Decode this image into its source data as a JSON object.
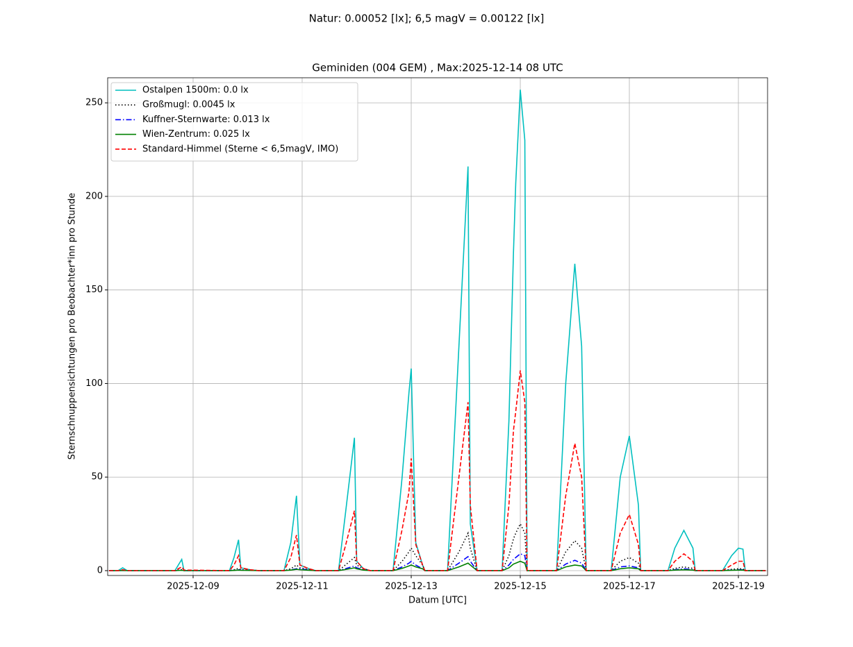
{
  "chart_data": {
    "type": "line",
    "suptitle": "Natur: 0.00052 [lx]; 6,5 magV = 0.00122 [lx]",
    "title": "Geminiden (004 GEM) , Max:2025-12-14 08 UTC",
    "x_label": "Datum [UTC]",
    "y_label": "Sternschnuppensichtungen pro Beobachter*inn pro Stunde",
    "grid": true,
    "legend": "upper left",
    "xlim": [
      "2025-12-07T10:24",
      "2025-12-19T12:50"
    ],
    "xticks": [
      "2025-12-09",
      "2025-12-11",
      "2025-12-13",
      "2025-12-15",
      "2025-12-17",
      "2025-12-19"
    ],
    "ylim": [
      -2.6,
      263.4
    ],
    "yticks": [
      0,
      50,
      100,
      150,
      200,
      250
    ],
    "x": [
      "2025-12-07T11:00",
      "2025-12-07T15:00",
      "2025-12-07T17:00",
      "2025-12-07T19:00",
      "2025-12-08T16:00",
      "2025-12-08T19:00",
      "2025-12-08T20:00",
      "2025-12-09T16:00",
      "2025-12-09T18:00",
      "2025-12-09T20:00",
      "2025-12-09T21:00",
      "2025-12-10T01:00",
      "2025-12-10T05:00",
      "2025-12-10T16:00",
      "2025-12-10T19:00",
      "2025-12-10T21:30",
      "2025-12-10T23:00",
      "2025-12-11T03:00",
      "2025-12-11T06:00",
      "2025-12-11T16:00",
      "2025-12-11T19:00",
      "2025-12-11T23:00",
      "2025-12-12T00:00",
      "2025-12-12T03:00",
      "2025-12-12T06:00",
      "2025-12-12T16:00",
      "2025-12-12T20:00",
      "2025-12-12T23:00",
      "2025-12-13T00:00",
      "2025-12-13T02:00",
      "2025-12-13T05:00",
      "2025-12-13T06:00",
      "2025-12-13T16:00",
      "2025-12-13T21:00",
      "2025-12-14T01:00",
      "2025-12-14T02:00",
      "2025-12-14T05:00",
      "2025-12-14T16:00",
      "2025-12-14T19:00",
      "2025-12-14T21:00",
      "2025-12-14T22:00",
      "2025-12-15T00:00",
      "2025-12-15T02:00",
      "2025-12-15T03:00",
      "2025-12-15T16:00",
      "2025-12-15T20:00",
      "2025-12-16T00:00",
      "2025-12-16T03:00",
      "2025-12-16T05:00",
      "2025-12-16T16:00",
      "2025-12-16T20:00",
      "2025-12-17T00:00",
      "2025-12-17T04:00",
      "2025-12-17T05:00",
      "2025-12-17T17:00",
      "2025-12-17T20:00",
      "2025-12-18T00:00",
      "2025-12-18T04:00",
      "2025-12-18T05:00",
      "2025-12-18T17:00",
      "2025-12-18T21:00",
      "2025-12-19T00:00",
      "2025-12-19T02:00",
      "2025-12-19T03:00",
      "2025-12-19T12:00"
    ],
    "series": [
      {
        "name": "Ostalpen 1500m: 0.0 lx",
        "color": "#00bfbf",
        "linestyle": "solid",
        "values": [
          0,
          0,
          1.5,
          0,
          0,
          6,
          0,
          0,
          7,
          16.5,
          1.5,
          0.5,
          0,
          0,
          15,
          40,
          3,
          1,
          0,
          0,
          30,
          71,
          5,
          1,
          0,
          0,
          50,
          95,
          108,
          15,
          3,
          0,
          0,
          120,
          216,
          25,
          0,
          0,
          80,
          170,
          207,
          257,
          230,
          0,
          0,
          100,
          164,
          120,
          0,
          0,
          50,
          72,
          35,
          0,
          0,
          12,
          21.5,
          12,
          0,
          0,
          8,
          12,
          11.5,
          0,
          0
        ]
      },
      {
        "name": "Großmugl: 0.0045 lx",
        "color": "#000000",
        "linestyle": "dotted",
        "values": [
          0,
          0,
          0.2,
          0,
          0,
          0.5,
          0,
          0,
          0.5,
          1.2,
          0.5,
          0.3,
          0,
          0,
          1,
          3,
          1.5,
          0.5,
          0,
          0,
          3,
          7,
          3,
          1,
          0,
          0,
          5,
          10,
          12,
          8,
          3,
          0,
          0,
          10,
          20,
          12,
          0,
          0,
          8,
          17,
          20,
          25,
          20,
          0,
          0,
          10,
          16,
          12,
          0,
          0,
          5,
          7,
          4,
          0,
          0,
          1.2,
          2,
          1.2,
          0,
          0,
          0.7,
          1,
          1,
          0,
          0
        ]
      },
      {
        "name": "Kuffner-Sternwarte: 0.013 lx",
        "color": "#0000ff",
        "linestyle": "dashdot",
        "values": [
          0,
          0,
          0.1,
          0,
          0,
          0.3,
          0,
          0,
          0.2,
          0.5,
          0.3,
          0.2,
          0,
          0,
          0.4,
          1,
          1,
          0.3,
          0,
          0,
          1,
          2.5,
          1.5,
          0.5,
          0,
          0,
          2,
          4,
          5,
          3,
          1,
          0,
          0,
          4,
          7.5,
          5,
          0,
          0,
          3,
          6,
          7,
          9,
          8,
          0,
          0,
          3.5,
          5.5,
          4,
          0,
          0,
          2,
          2.5,
          1.5,
          0,
          0,
          0.5,
          1,
          0.5,
          0,
          0,
          0.3,
          0.5,
          0.5,
          0,
          0
        ]
      },
      {
        "name": "Wien-Zentrum: 0.025 lx",
        "color": "#008000",
        "linestyle": "solid",
        "values": [
          0,
          0,
          0.1,
          0,
          0,
          0.2,
          0,
          0,
          0.1,
          0.3,
          0.2,
          0.1,
          0,
          0,
          0.3,
          0.7,
          0.5,
          0.2,
          0,
          0,
          0.6,
          1.5,
          1,
          0.3,
          0,
          0,
          1.2,
          2.5,
          3,
          2,
          1,
          0,
          0,
          2,
          4,
          3,
          0,
          0,
          1.5,
          3.5,
          4,
          5,
          4,
          0,
          0,
          2,
          3,
          2.5,
          0,
          0,
          1,
          1.5,
          1,
          0,
          0,
          0.3,
          0.5,
          0.3,
          0,
          0,
          0.2,
          0.3,
          0.3,
          0,
          0
        ]
      },
      {
        "name": "Standard-Himmel (Sterne < 6,5magV, IMO)",
        "color": "#ff0000",
        "linestyle": "dashed",
        "values": [
          0,
          0,
          0.5,
          0,
          0,
          2,
          0.3,
          0,
          3,
          8,
          1.5,
          0.5,
          0,
          0,
          7,
          19,
          3,
          1,
          0,
          0,
          13,
          32,
          5,
          1,
          0,
          0,
          22,
          42,
          60,
          14,
          3,
          0,
          0,
          50,
          90,
          35,
          0,
          0,
          35,
          75,
          85,
          107,
          90,
          0,
          0,
          40,
          68,
          50,
          0,
          0,
          20,
          30,
          14,
          0,
          0,
          5,
          9,
          5,
          0,
          0,
          3,
          5,
          5,
          0,
          0
        ]
      }
    ]
  }
}
